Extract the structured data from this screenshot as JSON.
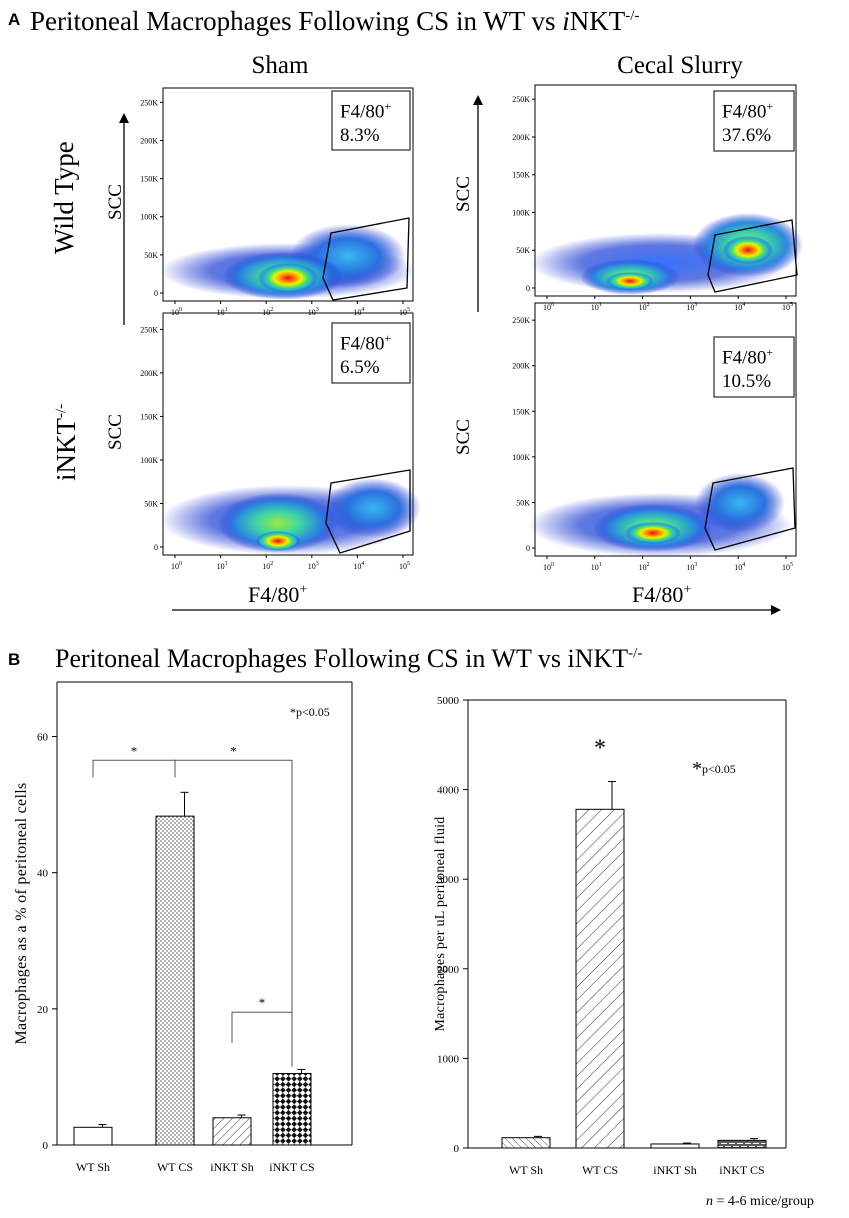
{
  "panel_a": {
    "letter": "A",
    "title": "Peritoneal Macrophages Following CS in WT vs iNKT-/-",
    "title_main": "Peritoneal Macrophages Following CS in WT vs ",
    "title_italic_i": "i",
    "title_nkt": "NKT",
    "title_sup": "-/-",
    "col_sham": "Sham",
    "col_cs": "Cecal Slurry",
    "row_wt": "Wild Type",
    "row_inkt": "iNKT",
    "row_inkt_sup": "-/-",
    "scc_label": "SCC",
    "x_label": "F4/80",
    "x_label_sup": "+",
    "gate_label": "F4/80",
    "gate_label_sup": "+",
    "y_ticks": [
      "0",
      "50K",
      "100K",
      "150K",
      "200K",
      "250K"
    ],
    "x_tick_base": "10",
    "x_tick_exps": [
      "0",
      "1",
      "2",
      "3",
      "4",
      "5"
    ],
    "plots": [
      {
        "condition": "Wild Type Sham",
        "percent": "8.3%"
      },
      {
        "condition": "Wild Type Cecal Slurry",
        "percent": "37.6%"
      },
      {
        "condition": "iNKT-/- Sham",
        "percent": "6.5%"
      },
      {
        "condition": "iNKT-/- Cecal Slurry",
        "percent": "10.5%"
      }
    ]
  },
  "panel_b": {
    "letter": "B",
    "title_main": "Peritoneal Macrophages Following CS in WT vs iNKT",
    "title_sup": "-/-",
    "footnote_n": "n",
    "footnote_rest": " = 4-6 mice/group"
  },
  "chart_data": [
    {
      "type": "bar",
      "title": "",
      "xlabel": "",
      "ylabel": "Macrophages as a % of peritoneal cells",
      "categories": [
        "WT Sh",
        "WT CS",
        "iNKT Sh",
        "iNKT CS"
      ],
      "values": [
        2.6,
        48.3,
        4.0,
        10.5
      ],
      "errors": [
        0.4,
        3.5,
        0.4,
        0.6
      ],
      "ylim": [
        0,
        68
      ],
      "yticks": [
        "0",
        "20",
        "40",
        "60"
      ],
      "significance_note_star": "*",
      "significance_note": "p<0.05",
      "brackets": [
        {
          "from": "WT Sh",
          "to": "WT CS",
          "label": "*"
        },
        {
          "from": "WT CS",
          "to": "iNKT CS",
          "label": "*"
        },
        {
          "from": "iNKT Sh",
          "to": "iNKT CS",
          "label": "*"
        }
      ]
    },
    {
      "type": "bar",
      "title": "",
      "xlabel": "",
      "ylabel": "Macrophages per uL peritoneal fluid",
      "categories": [
        "WT Sh",
        "WT CS",
        "iNKT Sh",
        "iNKT CS"
      ],
      "values": [
        115,
        3780,
        45,
        85
      ],
      "errors": [
        15,
        310,
        10,
        20
      ],
      "ylim": [
        0,
        5000
      ],
      "yticks": [
        "0",
        "1000",
        "2000",
        "3000",
        "4000",
        "5000"
      ],
      "significance_note_star": "*",
      "significance_note": "p<0.05",
      "annotations": [
        {
          "category": "WT CS",
          "label": "*"
        }
      ]
    }
  ]
}
